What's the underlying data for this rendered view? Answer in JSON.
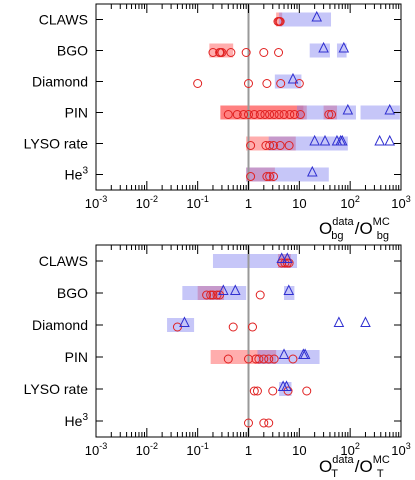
{
  "chart_data": [
    {
      "type": "scatter",
      "xscale": "log",
      "xlim": [
        0.001,
        1000
      ],
      "x_ticks": [
        {
          "value": 0.001,
          "base": "10",
          "exp": "-3"
        },
        {
          "value": 0.01,
          "base": "10",
          "exp": "-2"
        },
        {
          "value": 0.1,
          "base": "10",
          "exp": "-1"
        },
        {
          "value": 1,
          "base": "1",
          "exp": ""
        },
        {
          "value": 10,
          "base": "10",
          "exp": ""
        },
        {
          "value": 100,
          "base": "10",
          "exp": "2"
        },
        {
          "value": 1000,
          "base": "10",
          "exp": "3"
        }
      ],
      "xlabel": {
        "main": "O",
        "sup": "data",
        "sub": "bg",
        "sep": "/",
        "main2": "O",
        "sup2": "MC",
        "sub2": "bg"
      },
      "reference_line_x": 1,
      "categories": [
        {
          "label": "CLAWS",
          "sup": ""
        },
        {
          "label": "BGO",
          "sup": ""
        },
        {
          "label": "Diamond",
          "sup": ""
        },
        {
          "label": "PIN",
          "sup": ""
        },
        {
          "label": "LYSO rate",
          "sup": ""
        },
        {
          "label": "He",
          "sup": "3"
        }
      ],
      "series": [
        {
          "marker": "circle",
          "color": "#e02020",
          "band_color": "#ff4a4a",
          "points": [
            [
              0,
              3.8
            ],
            [
              0,
              4.2
            ],
            [
              0,
              4.0
            ],
            [
              1,
              0.2
            ],
            [
              1,
              0.27
            ],
            [
              1,
              0.3
            ],
            [
              1,
              0.28
            ],
            [
              1,
              0.45
            ],
            [
              1,
              0.9
            ],
            [
              1,
              2.0
            ],
            [
              1,
              3.9
            ],
            [
              2,
              0.1
            ],
            [
              2,
              1.0
            ],
            [
              2,
              2.3
            ],
            [
              2,
              4.3
            ],
            [
              2,
              10
            ],
            [
              3,
              0.4
            ],
            [
              3,
              0.6
            ],
            [
              3,
              0.8
            ],
            [
              3,
              1.0
            ],
            [
              3,
              1.3
            ],
            [
              3,
              1.7
            ],
            [
              3,
              2.1
            ],
            [
              3,
              2.6
            ],
            [
              3,
              3.2
            ],
            [
              3,
              4.0
            ],
            [
              3,
              5.0
            ],
            [
              3,
              6.5
            ],
            [
              3,
              8.0
            ],
            [
              3,
              10.5
            ],
            [
              3,
              38
            ],
            [
              3,
              43
            ],
            [
              4,
              1.1
            ],
            [
              4,
              2.2
            ],
            [
              4,
              2.6
            ],
            [
              4,
              3.1
            ],
            [
              4,
              4.2
            ],
            [
              4,
              6.3
            ],
            [
              5,
              1.1
            ],
            [
              5,
              2.3
            ],
            [
              5,
              2.6
            ],
            [
              5,
              3.1
            ]
          ],
          "bands": [
            [
              0,
              3.5,
              4.6
            ],
            [
              1,
              0.17,
              0.5
            ],
            [
              3,
              0.28,
              14
            ],
            [
              3,
              0.28,
              12
            ],
            [
              3,
              30,
              55
            ],
            [
              4,
              0.9,
              8.5
            ],
            [
              5,
              0.9,
              3.3
            ]
          ]
        },
        {
          "marker": "triangle",
          "color": "#3030d0",
          "band_color": "#8080f0",
          "points": [
            [
              0,
              22
            ],
            [
              1,
              30
            ],
            [
              1,
              75
            ],
            [
              2,
              7.5
            ],
            [
              3,
              90
            ],
            [
              3,
              600
            ],
            [
              4,
              20
            ],
            [
              4,
              32
            ],
            [
              4,
              55
            ],
            [
              4,
              65
            ],
            [
              4,
              70
            ],
            [
              4,
              380
            ],
            [
              4,
              600
            ],
            [
              5,
              18
            ]
          ],
          "bands": [
            [
              0,
              4,
              42
            ],
            [
              1,
              16,
              40
            ],
            [
              1,
              55,
              85
            ],
            [
              2,
              3.3,
              11
            ],
            [
              3,
              9,
              130
            ],
            [
              3,
              160,
              950
            ],
            [
              4,
              2.5,
              90
            ],
            [
              5,
              0.9,
              38
            ]
          ]
        }
      ]
    },
    {
      "type": "scatter",
      "xscale": "log",
      "xlim": [
        0.001,
        1000
      ],
      "x_ticks": [
        {
          "value": 0.001,
          "base": "10",
          "exp": "-3"
        },
        {
          "value": 0.01,
          "base": "10",
          "exp": "-2"
        },
        {
          "value": 0.1,
          "base": "10",
          "exp": "-1"
        },
        {
          "value": 1,
          "base": "1",
          "exp": ""
        },
        {
          "value": 10,
          "base": "10",
          "exp": ""
        },
        {
          "value": 100,
          "base": "10",
          "exp": "2"
        },
        {
          "value": 1000,
          "base": "10",
          "exp": "3"
        }
      ],
      "xlabel": {
        "main": "O",
        "sup": "data",
        "sub": "T",
        "sep": "/",
        "main2": "O",
        "sup2": "MC",
        "sub2": "T"
      },
      "reference_line_x": 1,
      "categories": [
        {
          "label": "CLAWS",
          "sup": ""
        },
        {
          "label": "BGO",
          "sup": ""
        },
        {
          "label": "Diamond",
          "sup": ""
        },
        {
          "label": "PIN",
          "sup": ""
        },
        {
          "label": "LYSO rate",
          "sup": ""
        },
        {
          "label": "He",
          "sup": "3"
        }
      ],
      "series": [
        {
          "marker": "circle",
          "color": "#e02020",
          "band_color": "#ff4a4a",
          "points": [
            [
              0,
              4.5
            ],
            [
              0,
              5.2
            ],
            [
              0,
              5.8
            ],
            [
              0,
              6.3
            ],
            [
              1,
              0.15
            ],
            [
              1,
              0.18
            ],
            [
              1,
              0.2
            ],
            [
              1,
              0.24
            ],
            [
              1,
              0.27
            ],
            [
              1,
              1.7
            ],
            [
              2,
              0.04
            ],
            [
              2,
              0.5
            ],
            [
              2,
              1.2
            ],
            [
              3,
              0.4
            ],
            [
              3,
              1.0
            ],
            [
              3,
              1.4
            ],
            [
              3,
              1.6
            ],
            [
              3,
              2.0
            ],
            [
              3,
              2.5
            ],
            [
              3,
              3.2
            ],
            [
              3,
              7.5
            ],
            [
              4,
              1.3
            ],
            [
              4,
              1.5
            ],
            [
              4,
              3.0
            ],
            [
              4,
              6.0
            ],
            [
              4,
              14
            ],
            [
              5,
              1.0
            ],
            [
              5,
              2.0
            ],
            [
              5,
              2.5
            ]
          ],
          "bands": [
            [
              0,
              3.8,
              6.8
            ],
            [
              1,
              0.1,
              0.33
            ],
            [
              3,
              0.18,
              3.5
            ]
          ]
        },
        {
          "marker": "triangle",
          "color": "#3030d0",
          "band_color": "#8080f0",
          "points": [
            [
              0,
              4.5
            ],
            [
              0,
              5.8
            ],
            [
              1,
              0.32
            ],
            [
              1,
              0.55
            ],
            [
              1,
              6.2
            ],
            [
              2,
              0.055
            ],
            [
              2,
              60
            ],
            [
              2,
              200
            ],
            [
              3,
              5.0
            ],
            [
              3,
              12
            ],
            [
              3,
              13
            ],
            [
              4,
              4.8
            ],
            [
              4,
              5.6
            ]
          ],
          "bands": [
            [
              0,
              0.2,
              9
            ],
            [
              1,
              0.05,
              0.9
            ],
            [
              1,
              5,
              8
            ],
            [
              2,
              0.025,
              0.085
            ],
            [
              3,
              1.5,
              25
            ],
            [
              4,
              4,
              7
            ]
          ]
        }
      ]
    }
  ]
}
